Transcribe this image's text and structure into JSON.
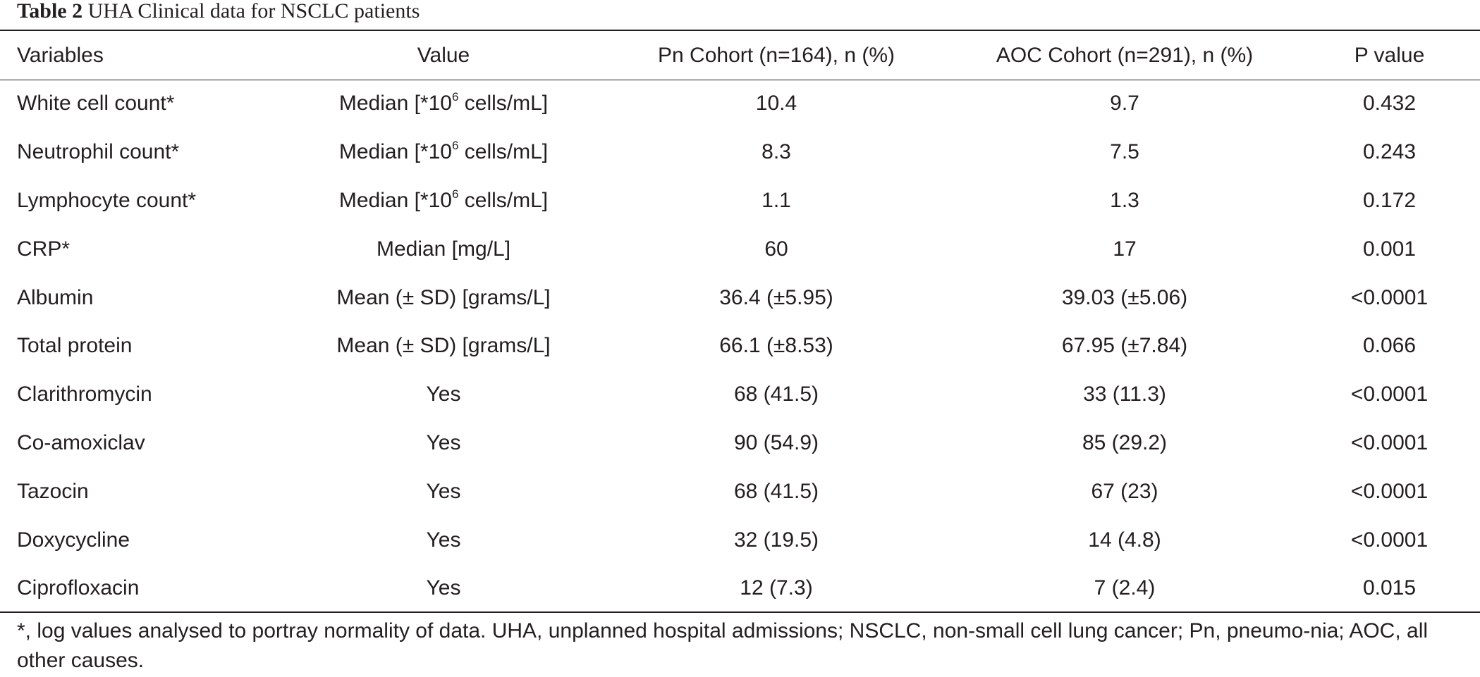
{
  "caption": {
    "label": "Table 2",
    "title": "UHA Clinical data for NSCLC patients"
  },
  "table": {
    "headers": [
      "Variables",
      "Value",
      "Pn Cohort (n=164), n (%)",
      "AOC Cohort (n=291), n (%)",
      "P value"
    ],
    "rows": [
      {
        "variable": "White cell count*",
        "value": {
          "pre": "Median [*10",
          "sup": "6",
          "post": " cells/mL]"
        },
        "pn": "10.4",
        "aoc": "9.7",
        "p": "0.432"
      },
      {
        "variable": "Neutrophil count*",
        "value": {
          "pre": "Median [*10",
          "sup": "6",
          "post": " cells/mL]"
        },
        "pn": "8.3",
        "aoc": "7.5",
        "p": "0.243"
      },
      {
        "variable": "Lymphocyte count*",
        "value": {
          "pre": "Median [*10",
          "sup": "6",
          "post": " cells/mL]"
        },
        "pn": "1.1",
        "aoc": "1.3",
        "p": "0.172"
      },
      {
        "variable": "CRP*",
        "value": {
          "pre": "Median [mg/L]",
          "sup": "",
          "post": ""
        },
        "pn": "60",
        "aoc": "17",
        "p": "0.001"
      },
      {
        "variable": "Albumin",
        "value": {
          "pre": "Mean (± SD) [grams/L]",
          "sup": "",
          "post": ""
        },
        "pn": "36.4 (±5.95)",
        "aoc": "39.03 (±5.06)",
        "p": "<0.0001"
      },
      {
        "variable": "Total protein",
        "value": {
          "pre": "Mean (± SD) [grams/L]",
          "sup": "",
          "post": ""
        },
        "pn": "66.1 (±8.53)",
        "aoc": "67.95 (±7.84)",
        "p": "0.066"
      },
      {
        "variable": "Clarithromycin",
        "value": {
          "pre": "Yes",
          "sup": "",
          "post": ""
        },
        "pn": "68 (41.5)",
        "aoc": "33 (11.3)",
        "p": "<0.0001"
      },
      {
        "variable": "Co-amoxiclav",
        "value": {
          "pre": "Yes",
          "sup": "",
          "post": ""
        },
        "pn": "90 (54.9)",
        "aoc": "85 (29.2)",
        "p": "<0.0001"
      },
      {
        "variable": "Tazocin",
        "value": {
          "pre": "Yes",
          "sup": "",
          "post": ""
        },
        "pn": "68 (41.5)",
        "aoc": "67 (23)",
        "p": "<0.0001"
      },
      {
        "variable": "Doxycycline",
        "value": {
          "pre": "Yes",
          "sup": "",
          "post": ""
        },
        "pn": "32 (19.5)",
        "aoc": "14 (4.8)",
        "p": "<0.0001"
      },
      {
        "variable": "Ciprofloxacin",
        "value": {
          "pre": "Yes",
          "sup": "",
          "post": ""
        },
        "pn": "12 (7.3)",
        "aoc": "7 (2.4)",
        "p": "0.015"
      }
    ]
  },
  "footnote": "*, log values analysed to portray normality of data. UHA, unplanned hospital admissions; NSCLC, non-small cell lung cancer; Pn, pneumo-nia; AOC, all other causes."
}
